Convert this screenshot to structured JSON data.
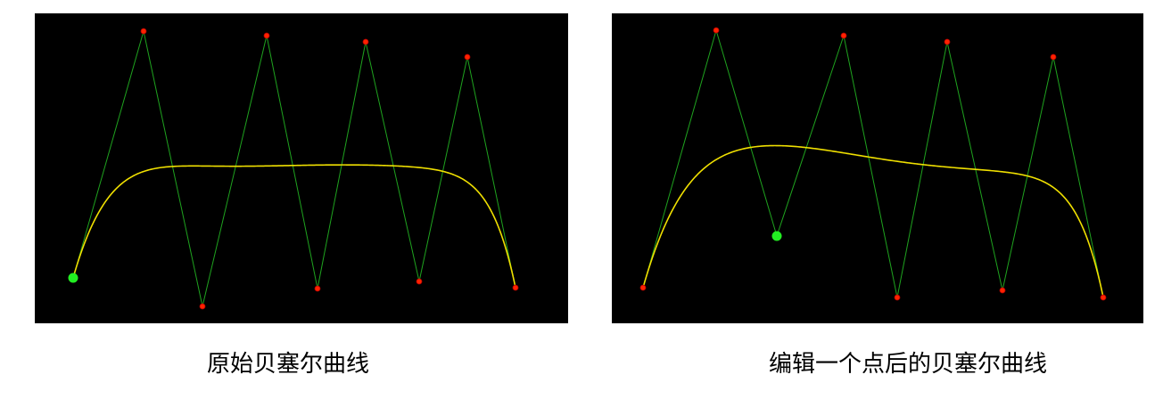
{
  "captions": {
    "original": "原始贝塞尔曲线",
    "edited": "编辑一个点后的贝塞尔曲线"
  },
  "colors": {
    "background": "#000000",
    "control_polygon": "#1fa31f",
    "curve": "#f0e000",
    "control_point": "#ff2200",
    "control_point_edge": "#b30000",
    "highlighted_point": "#22ee22"
  }
}
